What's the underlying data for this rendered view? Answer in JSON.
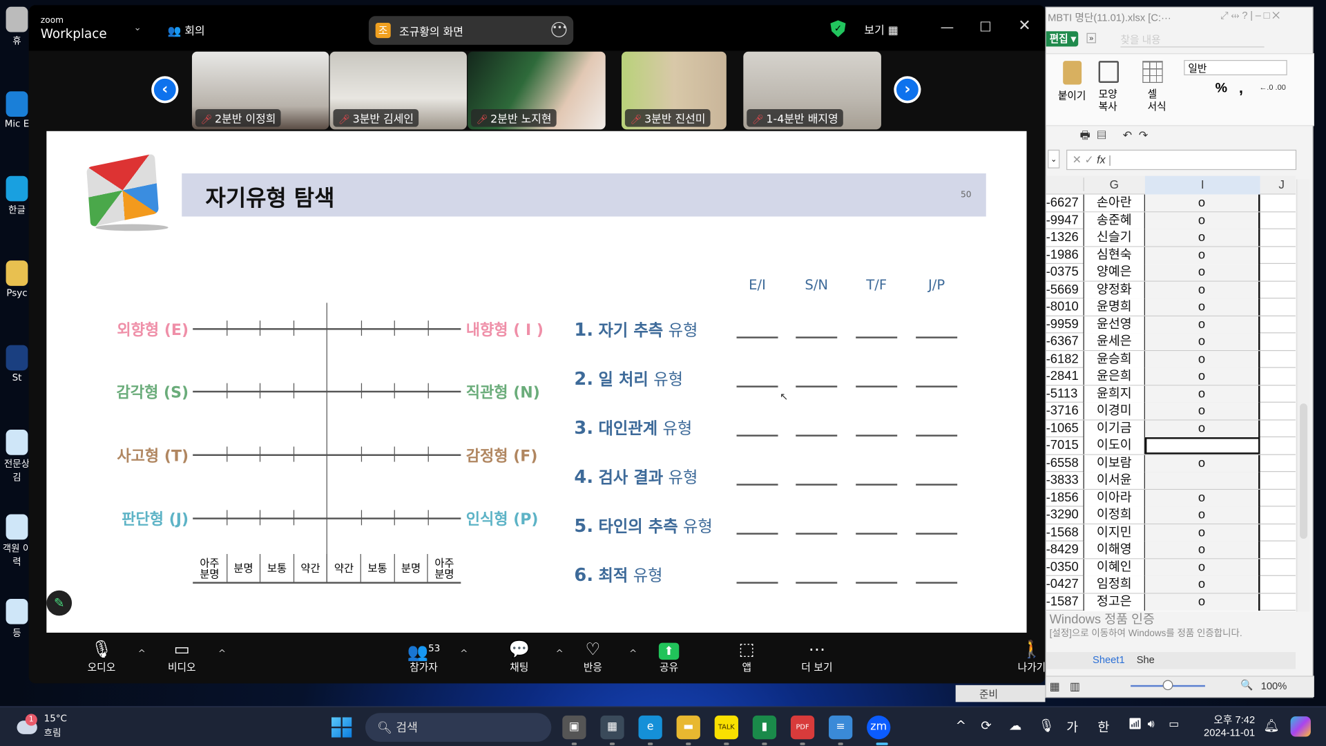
{
  "desktop": {
    "icons": [
      "휴",
      "Mic E",
      "한글",
      "Psyc",
      "St",
      "전문상 김",
      "객원 이력",
      "등"
    ]
  },
  "zoom": {
    "brand_small": "zoom",
    "brand": "Workplace",
    "meeting_label": "회의",
    "share_badge": "조",
    "share_title": "조규황의 화면",
    "view_label": "보기",
    "participants": [
      {
        "name": "2분반 이정희",
        "bg": "linear-gradient(180deg,#e8e8e6,#b8b2aa 70%,#5a4c44)"
      },
      {
        "name": "3분반 김세인",
        "bg": "linear-gradient(180deg,#c9c7c0,#e8e6e1 60%,#9d958a)"
      },
      {
        "name": "2분반 노지현",
        "bg": "linear-gradient(120deg,#14271c,#2e6a3a 40%,#e2c8b4 70%,#f0ece8)"
      },
      {
        "name": "3분반 진선미",
        "bg": "linear-gradient(90deg,#b9d27a,#d8c8a8 50%,#c9b59a)"
      },
      {
        "name": "1-4분반 배지영",
        "bg": "linear-gradient(180deg,#d6d3cd,#bdb8b0 60%,#a69f94)"
      }
    ],
    "slide": {
      "title": "자기유형 탐색",
      "page": "50",
      "scale_rows": [
        {
          "left": "외향형 (E)",
          "right": "내향형 ( I )",
          "color": "#ef8fa8"
        },
        {
          "left": "감각형 (S)",
          "right": "직관형 (N)",
          "color": "#6aac7a"
        },
        {
          "left": "사고형 (T)",
          "right": "감정형 (F)",
          "color": "#b08660"
        },
        {
          "left": "판단형 (J)",
          "right": "인식형 (P)",
          "color": "#5db3c6"
        }
      ],
      "scale_labels": [
        "아주\n분명",
        "분명",
        "보통",
        "약간",
        "약간",
        "보통",
        "분명",
        "아주\n분명"
      ],
      "columns": [
        "E/I",
        "S/N",
        "T/F",
        "J/P"
      ],
      "items": [
        {
          "num": "1.",
          "bold": "자기 추측",
          "rest": "유형"
        },
        {
          "num": "2.",
          "bold": "일 처리",
          "rest": "유형"
        },
        {
          "num": "3.",
          "bold": "대인관계",
          "rest": "유형"
        },
        {
          "num": "4.",
          "bold": "검사 결과",
          "rest": "유형"
        },
        {
          "num": "5.",
          "bold": "타인의 추측",
          "rest": "유형"
        },
        {
          "num": "6.",
          "bold": "최적",
          "rest": "유형"
        }
      ]
    },
    "toolbar": [
      {
        "label": "오디오",
        "icon": "mic-off-icon",
        "glyph": "🎙",
        "caret": true
      },
      {
        "label": "비디오",
        "icon": "video-icon",
        "glyph": "▭",
        "caret": true
      },
      {
        "label": "참가자",
        "icon": "participants-icon",
        "glyph": "👥",
        "caret": true,
        "count": "53"
      },
      {
        "label": "채팅",
        "icon": "chat-icon",
        "glyph": "💬",
        "caret": true
      },
      {
        "label": "반응",
        "icon": "heart-icon",
        "glyph": "♡",
        "caret": true
      },
      {
        "label": "공유",
        "icon": "share-icon",
        "glyph": "⬆",
        "green": true
      },
      {
        "label": "앱",
        "icon": "apps-icon",
        "glyph": "⬚"
      },
      {
        "label": "더 보기",
        "icon": "more-icon",
        "glyph": "⋯"
      },
      {
        "label": "나가기",
        "icon": "leave-icon",
        "glyph": "🚶"
      }
    ]
  },
  "excel": {
    "title": "MBTI 명단(11.01).xlsx [C:···",
    "edit_button": "편집",
    "find_placeholder": "찾을 내용",
    "ribbon": {
      "paste": "붙이기",
      "format_painter": "모양\n복사",
      "cell_format": "셀\n서식",
      "number_format": "일반",
      "percent": "%",
      "comma": ","
    },
    "formula_fx": "fx",
    "columns": [
      "G",
      "I",
      "J"
    ],
    "rows": [
      [
        "-6627",
        "손아란",
        "o"
      ],
      [
        "-9947",
        "송준혜",
        "o"
      ],
      [
        "-1326",
        "신슬기",
        "o"
      ],
      [
        "-1986",
        "심현숙",
        "o"
      ],
      [
        "-0375",
        "양예은",
        "o"
      ],
      [
        "-5669",
        "양정화",
        "o"
      ],
      [
        "-8010",
        "윤명희",
        "o"
      ],
      [
        "-9959",
        "윤선영",
        "o"
      ],
      [
        "-6367",
        "윤세은",
        "o"
      ],
      [
        "-6182",
        "윤승희",
        "o"
      ],
      [
        "-2841",
        "윤은희",
        "o"
      ],
      [
        "-5113",
        "윤희지",
        "o"
      ],
      [
        "-3716",
        "이경미",
        "o"
      ],
      [
        "-1065",
        "이기금",
        "o"
      ],
      [
        "-7015",
        "이도이",
        ""
      ],
      [
        "-6558",
        "이보람",
        "o"
      ],
      [
        "-3833",
        "이서윤",
        ""
      ],
      [
        "-1856",
        "이아라",
        "o"
      ],
      [
        "-3290",
        "이정희",
        "o"
      ],
      [
        "-1568",
        "이지민",
        "o"
      ],
      [
        "-8429",
        "이해영",
        "o"
      ],
      [
        "-0350",
        "이혜인",
        "o"
      ],
      [
        "-0427",
        "임정희",
        "o"
      ],
      [
        "-1587",
        "정고은",
        "o"
      ]
    ],
    "selected_row": 14,
    "sheet_tabs": [
      "Sheet1",
      "She"
    ],
    "watermark": [
      "Windows 정품 인증",
      "[설정]으로 이동하여 Windows를 정품 인증합니다."
    ],
    "status": "준비",
    "zoom": "100%"
  },
  "taskbar": {
    "weather_temp": "15°C",
    "weather_desc": "흐림",
    "weather_badge": "1",
    "search": "검색",
    "apps": [
      {
        "name": "task-view",
        "glyph": "▣",
        "bg": "#555"
      },
      {
        "name": "calculator",
        "glyph": "▦",
        "bg": "#3a4a5a"
      },
      {
        "name": "edge",
        "glyph": "e",
        "bg": "#1590d8"
      },
      {
        "name": "file-explorer",
        "glyph": "▬",
        "bg": "#e8b830"
      },
      {
        "name": "kakaotalk",
        "glyph": "TALK",
        "bg": "#f9e000"
      },
      {
        "name": "sheets",
        "glyph": "▮",
        "bg": "#1a8a4a"
      },
      {
        "name": "pdf",
        "glyph": "PDF",
        "bg": "#d83b3b"
      },
      {
        "name": "notepad",
        "glyph": "≡",
        "bg": "#3a8ad8"
      },
      {
        "name": "zoom",
        "glyph": "zm",
        "bg": "#0b5cff"
      }
    ],
    "ime1": "가",
    "ime2": "한",
    "time": "오후 7:42",
    "date": "2024-11-01"
  }
}
